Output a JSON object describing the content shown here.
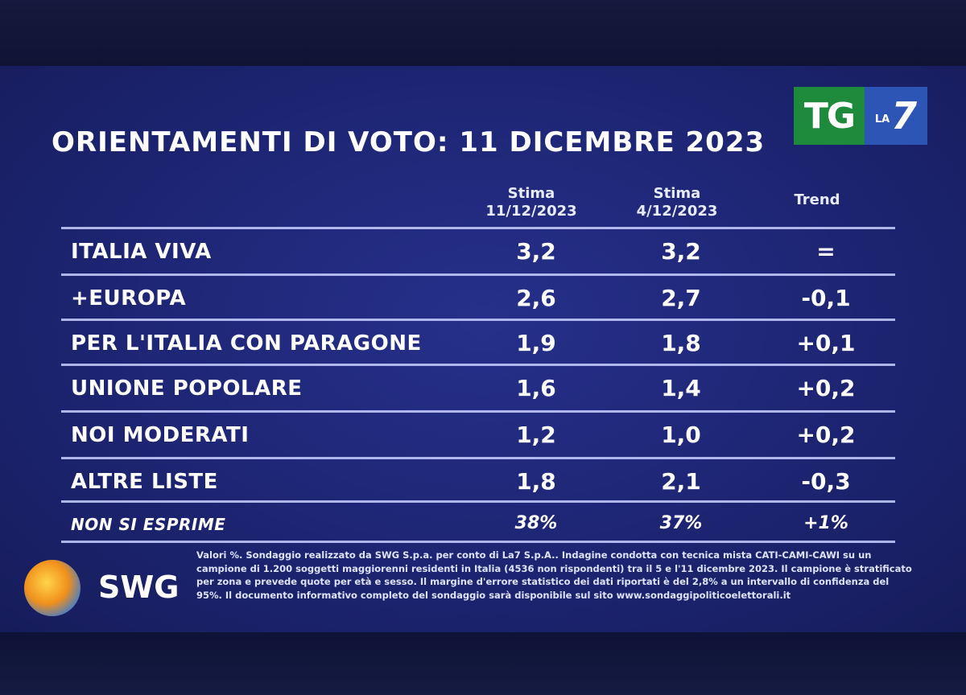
{
  "title": "ORIENTAMENTI DI VOTO: 11 DICEMBRE 2023",
  "logo": {
    "tg": "TG",
    "la": "LA",
    "seven": "7"
  },
  "columns": [
    {
      "line1": "Stima",
      "line2": "11/12/2023"
    },
    {
      "line1": "Stima",
      "line2": "4/12/2023"
    },
    {
      "line1": "Trend",
      "line2": ""
    }
  ],
  "rows": [
    {
      "name": "ITALIA VIVA",
      "current": "3,2",
      "previous": "3,2",
      "trend": "="
    },
    {
      "name": "+EUROPA",
      "current": "2,6",
      "previous": "2,7",
      "trend": "-0,1"
    },
    {
      "name": "PER L'ITALIA CON PARAGONE",
      "current": "1,9",
      "previous": "1,8",
      "trend": "+0,1"
    },
    {
      "name": "UNIONE POPOLARE",
      "current": "1,6",
      "previous": "1,4",
      "trend": "+0,2"
    },
    {
      "name": "NOI MODERATI",
      "current": "1,2",
      "previous": "1,0",
      "trend": "+0,2"
    },
    {
      "name": "ALTRE LISTE",
      "current": "1,8",
      "previous": "2,1",
      "trend": "-0,3"
    },
    {
      "name": "NON SI ESPRIME",
      "current": "38%",
      "previous": "37%",
      "trend": "+1%"
    }
  ],
  "swg_label": "SWG",
  "footnote": "Valori %. Sondaggio realizzato da SWG S.p.a. per conto di La7 S.p.A.. Indagine condotta con tecnica mista CATI-CAMI-CAWI su un campione di 1.200 soggetti maggiorenni residenti in Italia (4536 non rispondenti) tra il 5 e l'11 dicembre 2023. Il campione è stratificato per zona e prevede quote per età e sesso. Il margine d'errore statistico dei dati riportati è del 2,8% a un intervallo di confidenza del 95%. Il documento informativo completo del sondaggio sarà disponibile sul sito www.sondaggipoliticoelettorali.it",
  "colors": {
    "background": "#1d2573",
    "tg_green": "#1e8a3c",
    "la7_blue": "#2c55b5",
    "rule": "#c8d0ff"
  }
}
